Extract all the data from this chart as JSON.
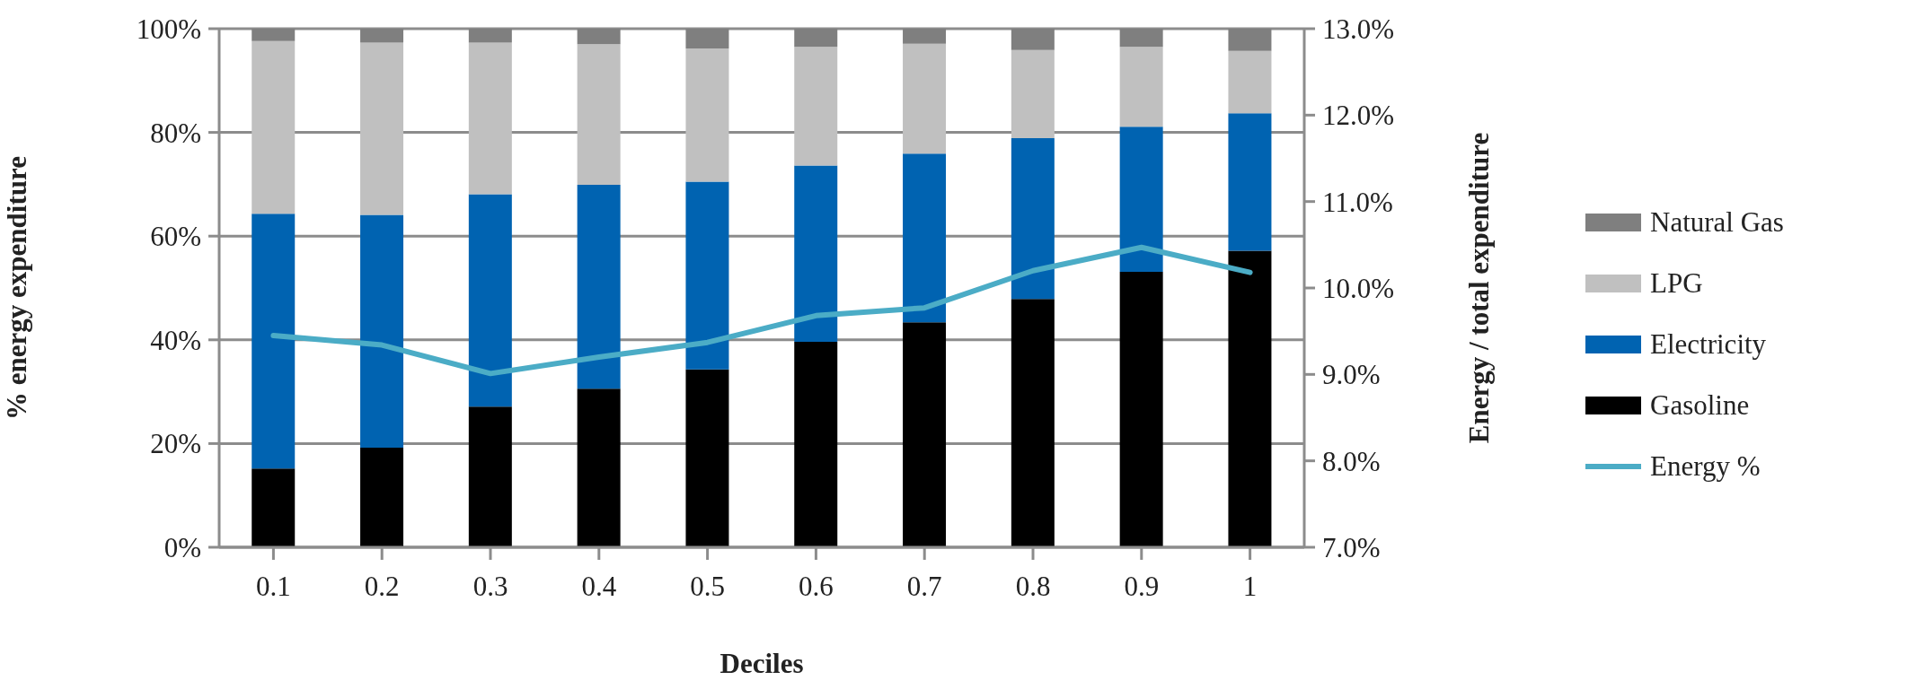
{
  "chart_data": {
    "type": "bar",
    "stacked": true,
    "xlabel": "Deciles",
    "ylabel": "% energy expenditure",
    "y2label": "Energy / total expenditure",
    "categories": [
      "0.1",
      "0.2",
      "0.3",
      "0.4",
      "0.5",
      "0.6",
      "0.7",
      "0.8",
      "0.9",
      "1"
    ],
    "series": [
      {
        "name": "Gasoline",
        "color": "#000000",
        "values": [
          15.2,
          19.2,
          27.1,
          30.6,
          34.3,
          39.6,
          43.4,
          47.9,
          53.1,
          57.2
        ]
      },
      {
        "name": "Electricity",
        "color": "#0063b1",
        "values": [
          49.1,
          44.9,
          41.0,
          39.3,
          36.2,
          34.0,
          32.5,
          31.0,
          28.0,
          26.5
        ]
      },
      {
        "name": "LPG",
        "color": "#c0c0c0",
        "values": [
          33.3,
          33.2,
          29.2,
          27.1,
          25.7,
          22.9,
          21.2,
          17.0,
          15.4,
          12.0
        ]
      },
      {
        "name": "Natural Gas",
        "color": "#7f7f7f",
        "values": [
          2.4,
          2.7,
          2.7,
          3.0,
          3.8,
          3.5,
          2.9,
          4.1,
          3.5,
          4.3
        ]
      },
      {
        "name": "Energy %",
        "type": "line",
        "axis": "y2",
        "color": "#4bacc6",
        "values": [
          9.45,
          9.34,
          9.01,
          9.2,
          9.37,
          9.68,
          9.77,
          10.2,
          10.47,
          10.18
        ]
      }
    ],
    "ylim": [
      0,
      100
    ],
    "yticks": [
      {
        "value": 0,
        "label": "0%"
      },
      {
        "value": 20,
        "label": "20%"
      },
      {
        "value": 40,
        "label": "40%"
      },
      {
        "value": 60,
        "label": "60%"
      },
      {
        "value": 80,
        "label": "80%"
      },
      {
        "value": 100,
        "label": "100%"
      }
    ],
    "y2lim": [
      7,
      13
    ],
    "y2ticks": [
      {
        "value": 7,
        "label": "7.0%"
      },
      {
        "value": 8,
        "label": "8.0%"
      },
      {
        "value": 9,
        "label": "9.0%"
      },
      {
        "value": 10,
        "label": "10.0%"
      },
      {
        "value": 11,
        "label": "11.0%"
      },
      {
        "value": 12,
        "label": "12.0%"
      },
      {
        "value": 13,
        "label": "13.0%"
      }
    ],
    "grid": "y",
    "legend": "right",
    "marker": "none",
    "line_style": "solid"
  }
}
